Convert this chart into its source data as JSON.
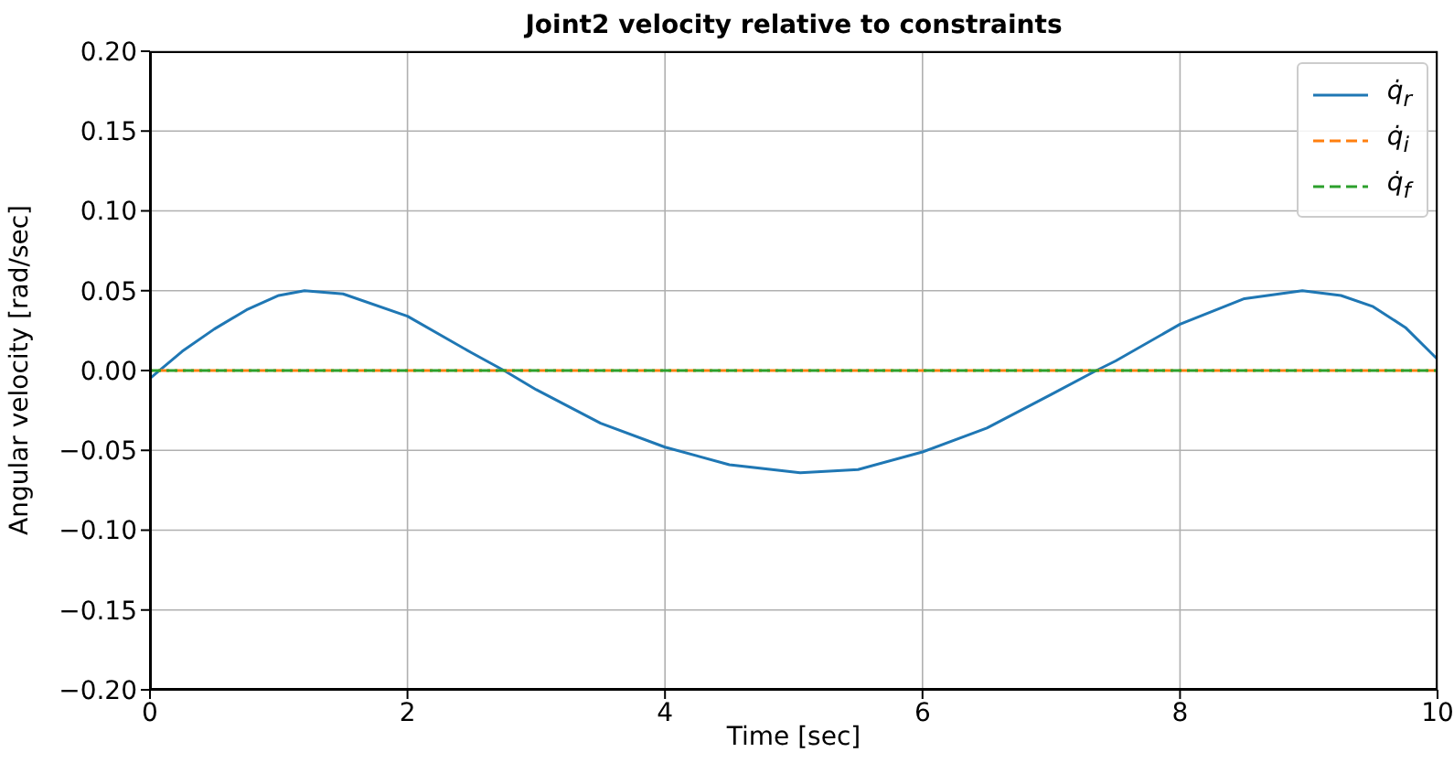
{
  "chart_data": {
    "type": "line",
    "title": "Joint2 velocity relative to constraints",
    "xlabel": "Time [sec]",
    "ylabel": "Angular velocity [rad/sec]",
    "xlim": [
      0,
      10
    ],
    "xticks": [
      0,
      2,
      4,
      6,
      8,
      10
    ],
    "ylim": [
      -0.2,
      0.2
    ],
    "yticks": [
      {
        "value": -0.2,
        "label": "−0.20"
      },
      {
        "value": -0.15,
        "label": "−0.15"
      },
      {
        "value": -0.1,
        "label": "−0.10"
      },
      {
        "value": -0.05,
        "label": "−0.05"
      },
      {
        "value": 0,
        "label": "0.00"
      },
      {
        "value": 0.05,
        "label": "0.05"
      },
      {
        "value": 0.1,
        "label": "0.10"
      },
      {
        "value": 0.15,
        "label": "0.15"
      },
      {
        "value": 0.2,
        "label": "0.20"
      }
    ],
    "grid": true,
    "legend": "top right",
    "marker": "none",
    "series": [
      {
        "name": "q̇$_{r}$",
        "color": "#1f77b4",
        "line_style": "solid",
        "x": [
          0,
          0.25,
          0.5,
          0.75,
          1.0,
          1.2,
          1.5,
          2.0,
          2.5,
          2.75,
          3.0,
          3.5,
          4.0,
          4.5,
          5.05,
          5.5,
          6.0,
          6.5,
          7.0,
          7.35,
          7.5,
          8.0,
          8.5,
          8.95,
          9.25,
          9.5,
          9.75,
          10
        ],
        "values": [
          -0.005,
          0.012,
          0.026,
          0.038,
          0.047,
          0.05,
          0.048,
          0.034,
          0.011,
          0.0,
          -0.012,
          -0.033,
          -0.048,
          -0.059,
          -0.064,
          -0.062,
          -0.051,
          -0.036,
          -0.015,
          0.0,
          0.006,
          0.029,
          0.045,
          0.05,
          0.047,
          0.04,
          0.027,
          0.007
        ]
      },
      {
        "name": "q̇$_{i}$",
        "color": "#ff7f0e",
        "line_style": "dashed",
        "x": [
          0,
          10
        ],
        "values": [
          0,
          0
        ]
      },
      {
        "name": "q̇$_{f}$",
        "color": "#2ca02c",
        "line_style": "dashed",
        "x": [
          0,
          10
        ],
        "values": [
          0,
          0
        ]
      }
    ]
  }
}
